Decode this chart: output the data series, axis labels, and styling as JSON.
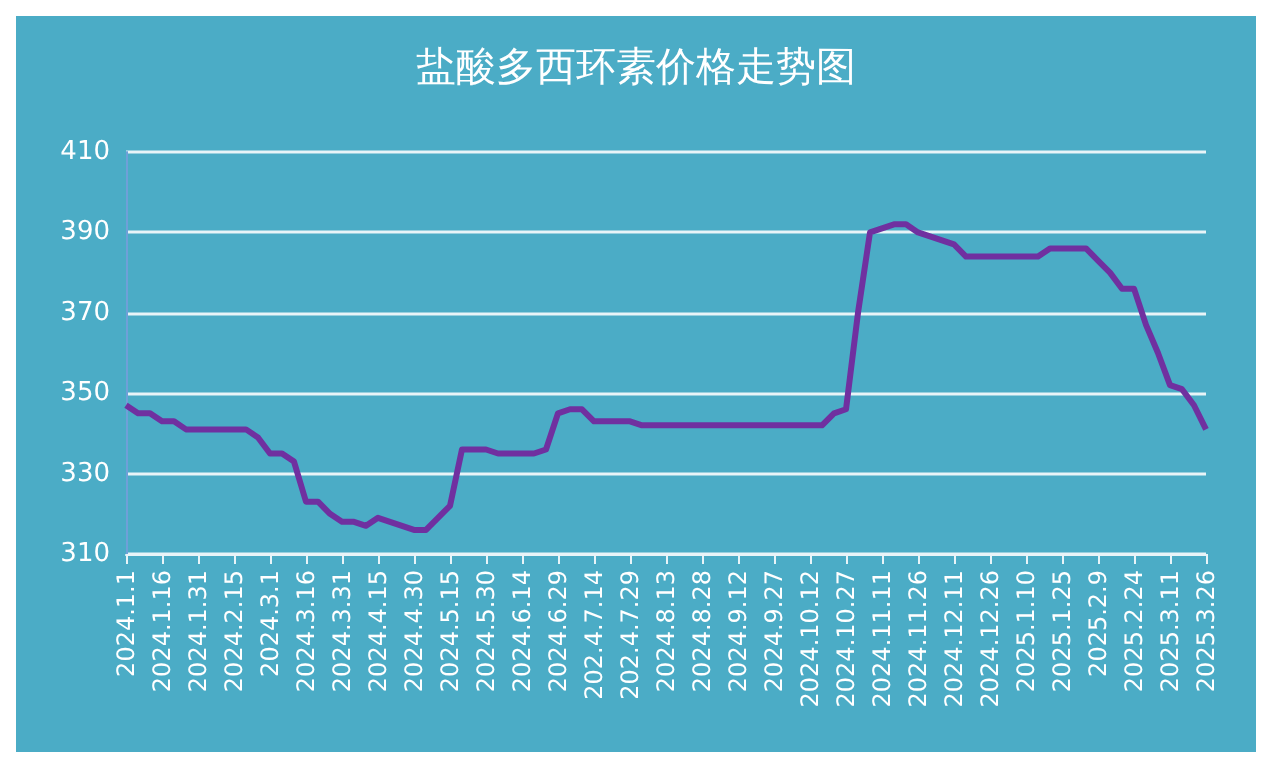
{
  "chart_data": {
    "type": "line",
    "title": "盐酸多西环素价格走势图",
    "categories": [
      "2024.1.1",
      null,
      null,
      "2024.1.16",
      null,
      null,
      "2024.1.31",
      null,
      null,
      "2024.2.15",
      null,
      null,
      "2024.3.1",
      null,
      null,
      "2024.3.16",
      null,
      null,
      "2024.3.31",
      null,
      null,
      "2024.4.15",
      null,
      null,
      "2024.4.30",
      null,
      null,
      "2024.5.15",
      null,
      null,
      "2024.5.30",
      null,
      null,
      "2024.6.14",
      null,
      null,
      "2024.6.29",
      null,
      null,
      "202.4.7.14",
      null,
      null,
      "202.4.7.29",
      null,
      null,
      "2024.8.13",
      null,
      null,
      "2024.8.28",
      null,
      null,
      "2024.9.12",
      null,
      null,
      "2024.9.27",
      null,
      null,
      "2024.10.12",
      null,
      null,
      "2024.10.27",
      null,
      null,
      "2024.11.11",
      null,
      null,
      "2024.11.26",
      null,
      null,
      "2024.12.11",
      null,
      null,
      "2024.12.26",
      null,
      null,
      "2025.1.10",
      null,
      null,
      "2025.1.25",
      null,
      null,
      "2025.2.9",
      null,
      null,
      "2025.2.24",
      null,
      null,
      "2025.3.11",
      null,
      null,
      "2025.3.26"
    ],
    "series": [
      {
        "color": "#7030a0",
        "values": [
          347,
          345,
          345,
          343,
          343,
          341,
          341,
          341,
          341,
          341,
          341,
          339,
          335,
          335,
          333,
          323,
          323,
          320,
          318,
          318,
          317,
          319,
          318,
          317,
          316,
          316,
          319,
          322,
          336,
          336,
          336,
          335,
          335,
          335,
          335,
          336,
          345,
          346,
          346,
          343,
          343,
          343,
          343,
          342,
          342,
          342,
          342,
          342,
          342,
          342,
          342,
          342,
          342,
          342,
          342,
          342,
          342,
          342,
          342,
          345,
          346,
          370,
          390,
          391,
          392,
          392,
          390,
          389,
          388,
          387,
          384,
          384,
          384,
          384,
          384,
          384,
          384,
          386,
          386,
          386,
          386,
          383,
          380,
          376,
          376,
          367,
          360,
          352,
          351,
          347,
          341
        ]
      }
    ],
    "ylim": [
      310,
      410
    ],
    "yticks": [
      310,
      330,
      350,
      370,
      390,
      410
    ],
    "grid": "y",
    "marker": "none",
    "line_style": "solid"
  }
}
